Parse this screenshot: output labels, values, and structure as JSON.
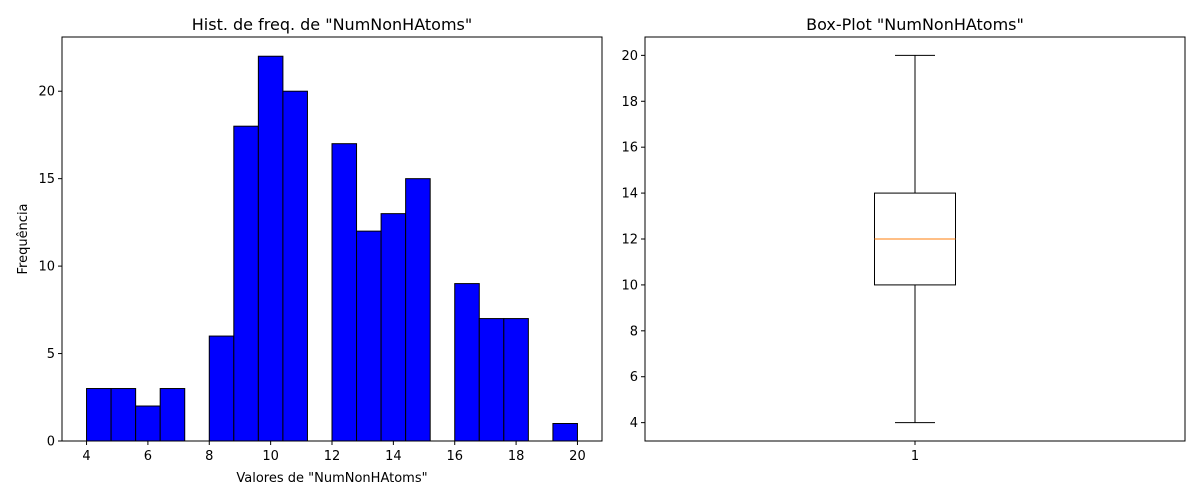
{
  "chart_data": [
    {
      "type": "bar",
      "title": "Hist. de freq. de \"NumNonHAtoms\"",
      "xlabel": "Valores de \"NumNonHAtoms\"",
      "ylabel": "Frequência",
      "bar_color": "#0000ff",
      "edge_color": "#000000",
      "bins": [
        {
          "x0": 4.0,
          "x1": 4.8,
          "count": 3
        },
        {
          "x0": 4.8,
          "x1": 5.6,
          "count": 3
        },
        {
          "x0": 5.6,
          "x1": 6.4,
          "count": 2
        },
        {
          "x0": 6.4,
          "x1": 7.2,
          "count": 3
        },
        {
          "x0": 7.2,
          "x1": 8.0,
          "count": 0
        },
        {
          "x0": 8.0,
          "x1": 8.8,
          "count": 6
        },
        {
          "x0": 8.8,
          "x1": 9.6,
          "count": 18
        },
        {
          "x0": 9.6,
          "x1": 10.4,
          "count": 22
        },
        {
          "x0": 10.4,
          "x1": 11.2,
          "count": 20
        },
        {
          "x0": 11.2,
          "x1": 12.0,
          "count": 0
        },
        {
          "x0": 12.0,
          "x1": 12.8,
          "count": 17
        },
        {
          "x0": 12.8,
          "x1": 13.6,
          "count": 12
        },
        {
          "x0": 13.6,
          "x1": 14.4,
          "count": 13
        },
        {
          "x0": 14.4,
          "x1": 15.2,
          "count": 15
        },
        {
          "x0": 15.2,
          "x1": 16.0,
          "count": 0
        },
        {
          "x0": 16.0,
          "x1": 16.8,
          "count": 9
        },
        {
          "x0": 16.8,
          "x1": 17.6,
          "count": 7
        },
        {
          "x0": 17.6,
          "x1": 18.4,
          "count": 7
        },
        {
          "x0": 18.4,
          "x1": 19.2,
          "count": 0
        },
        {
          "x0": 19.2,
          "x1": 20.0,
          "count": 1
        }
      ],
      "xlim": [
        3.2,
        20.8
      ],
      "ylim": [
        0,
        23.1
      ],
      "xticks": [
        4,
        6,
        8,
        10,
        12,
        14,
        16,
        18,
        20
      ],
      "yticks": [
        0,
        5,
        10,
        15,
        20
      ],
      "grid": false
    },
    {
      "type": "box",
      "title": "Box-Plot \"NumNonHAtoms\"",
      "categories": [
        "1"
      ],
      "stats": {
        "whisker_low": 4,
        "q1": 10,
        "median": 12,
        "q3": 14,
        "whisker_high": 20
      },
      "median_color": "#ff7f0e",
      "ylim": [
        3.2,
        20.8
      ],
      "yticks": [
        4,
        6,
        8,
        10,
        12,
        14,
        16,
        18,
        20
      ],
      "grid": false
    }
  ]
}
